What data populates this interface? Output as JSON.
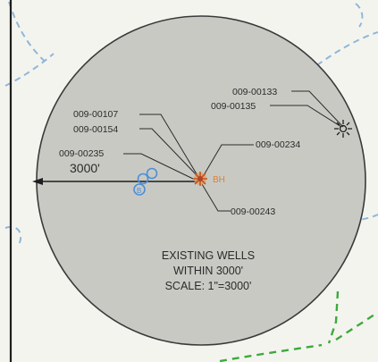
{
  "map": {
    "radius_label": "3000'",
    "note_lines": [
      "EXISTING WELLS",
      "WITHIN 3000'",
      "SCALE: 1\"=3000'"
    ],
    "bh_label": "BH",
    "colors": {
      "background": "#f4f4ef",
      "circle_fill": "#c9c9c4",
      "circle_stroke": "#3a3a3a",
      "blue_dashed": "#8fb7d8",
      "green_dashed": "#3caa3c",
      "well_blue": "#4e8fd6",
      "well_orange": "#d9823a",
      "text": "#2a2a2a"
    }
  },
  "wells": [
    {
      "id": "009-00107"
    },
    {
      "id": "009-00154"
    },
    {
      "id": "009-00235"
    },
    {
      "id": "009-00234"
    },
    {
      "id": "009-00243"
    },
    {
      "id": "009-00133"
    },
    {
      "id": "009-00135"
    }
  ]
}
